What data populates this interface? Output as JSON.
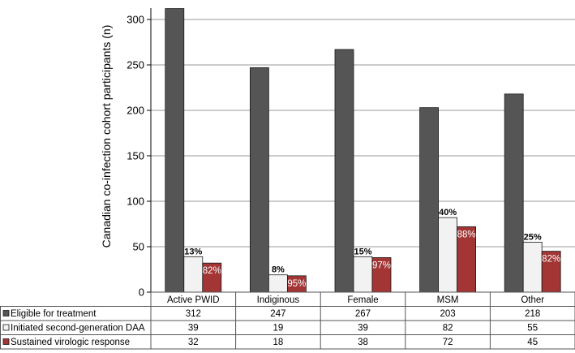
{
  "chart_data": {
    "type": "bar",
    "ylabel": "Canadian co-infection cohort participants (n)",
    "ylim": [
      0,
      320
    ],
    "yticks": [
      0,
      50,
      100,
      150,
      200,
      250,
      300
    ],
    "grid": true,
    "legend_placement": "data-table-left",
    "categories": [
      "Active PWID",
      "Indiginous",
      "Female",
      "MSM",
      "Other"
    ],
    "series": [
      {
        "name": "Eligible for treatment",
        "values": [
          312,
          247,
          267,
          203,
          218
        ],
        "color": "#555555",
        "annotations": [
          "",
          "",
          "",
          "",
          ""
        ]
      },
      {
        "name": "Initiated second-generation DAA",
        "values": [
          39,
          19,
          39,
          82,
          55
        ],
        "color": "#f2f2f2",
        "annotations": [
          "13%",
          "8%",
          "15%",
          "40%",
          "25%"
        ]
      },
      {
        "name": "Sustained virologic response",
        "values": [
          32,
          18,
          38,
          72,
          45
        ],
        "color": "#a33535",
        "annotations": [
          "82%",
          "95%",
          "97%",
          "88%",
          "82%"
        ]
      }
    ]
  }
}
